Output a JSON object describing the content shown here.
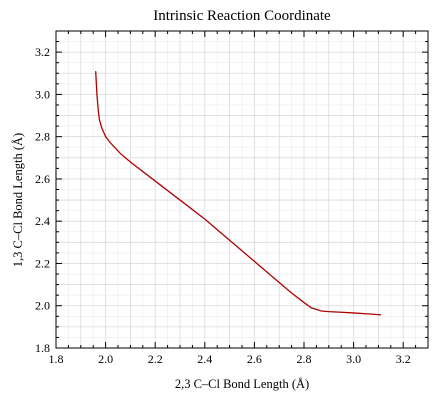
{
  "chart_data": {
    "type": "line",
    "title": "Intrinsic Reaction Coordinate",
    "xlabel": "2,3 C–Cl Bond Length (Å)",
    "ylabel": "1,3 C–Cl Bond Length (Å)",
    "xlim": [
      1.8,
      3.3
    ],
    "ylim": [
      1.8,
      3.3
    ],
    "xticks": [
      "1.8",
      "2.0",
      "2.2",
      "2.4",
      "2.6",
      "2.8",
      "3.0",
      "3.2"
    ],
    "yticks": [
      "1.8",
      "2.0",
      "2.2",
      "2.4",
      "2.6",
      "2.8",
      "3.0",
      "3.2"
    ],
    "grid": true,
    "series": [
      {
        "color": "#b00000",
        "x": [
          1.96,
          1.965,
          1.97,
          1.975,
          1.985,
          2.0,
          2.02,
          2.06,
          2.1,
          2.2,
          2.3,
          2.4,
          2.5,
          2.6,
          2.7,
          2.75,
          2.8,
          2.83,
          2.87,
          2.9,
          2.95,
          3.0,
          3.05,
          3.1,
          3.11
        ],
        "y": [
          3.11,
          3.0,
          2.93,
          2.88,
          2.84,
          2.8,
          2.77,
          2.72,
          2.68,
          2.59,
          2.5,
          2.41,
          2.31,
          2.21,
          2.11,
          2.06,
          2.015,
          1.99,
          1.975,
          1.972,
          1.969,
          1.966,
          1.962,
          1.958,
          1.957
        ]
      }
    ]
  }
}
